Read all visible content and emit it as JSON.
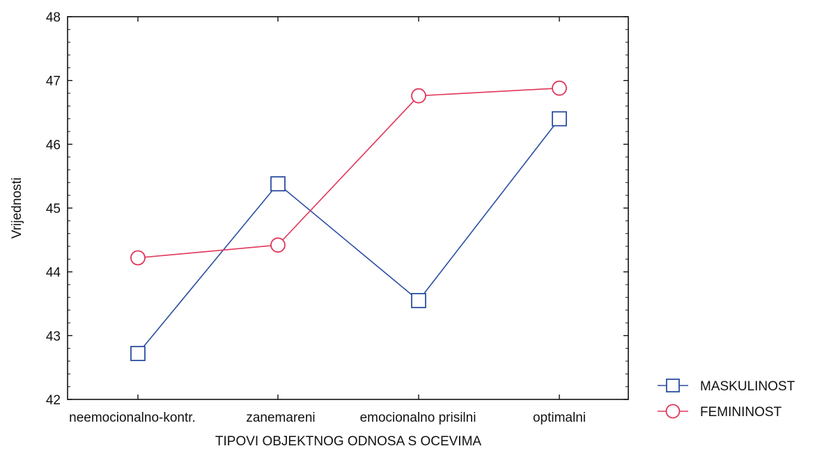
{
  "chart_data": {
    "type": "line",
    "title": "",
    "xlabel": "TIPOVI OBJEKTNOG ODNOSA S OCEVIMA",
    "ylabel": "Vrijednosti",
    "categories": [
      "neemocionalno-kontr.",
      "zanemareni",
      "emocionalno prisilni",
      "optimalni"
    ],
    "ylim": [
      42,
      48
    ],
    "yticks": [
      "42",
      "43",
      "44",
      "45",
      "46",
      "47",
      "48"
    ],
    "grid": false,
    "legend_position": "bottom-right",
    "series": [
      {
        "name": "MASKULINOST",
        "marker": "square",
        "color": "#2b4ea0",
        "values": [
          42.72,
          45.38,
          43.55,
          46.4
        ]
      },
      {
        "name": "FEMININOST",
        "marker": "circle",
        "color": "#e0365a",
        "values": [
          44.22,
          44.42,
          46.76,
          46.88
        ]
      }
    ]
  }
}
